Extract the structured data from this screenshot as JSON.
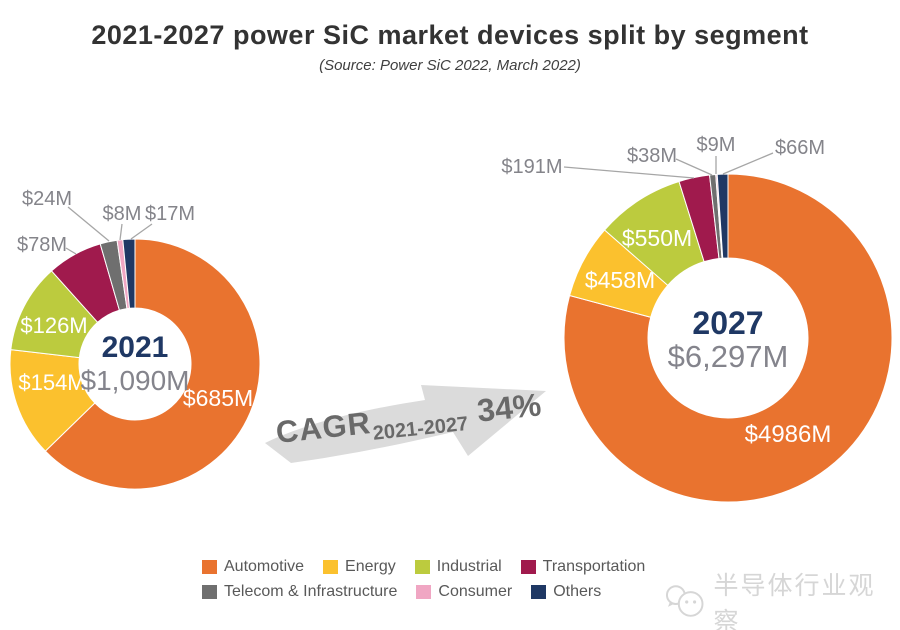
{
  "title": "2021-2027 power SiC market devices split by segment",
  "subtitle": "(Source: Power SiC 2022, March 2022)",
  "cagr": {
    "prefix": "CAGR",
    "subscript": "2021-2027",
    "value": "34%"
  },
  "watermark": {
    "text": "半导体行业观察"
  },
  "colors": {
    "automotive": "#E9732F",
    "energy": "#FBC12E",
    "industrial": "#BCCB3E",
    "transportation": "#A01A4D",
    "telecom_infrastructure": "#6F6F6F",
    "consumer": "#F0A6C3",
    "others": "#1F3864",
    "year_text": "#1F3864",
    "total_text": "#84848C",
    "inside_label": "#FFFFFF",
    "outside_label": "#84848A",
    "leader_line": "#A6A6A6",
    "arrow": "#DBDBDB",
    "cagr_text": "#696969",
    "title_text": "#333333",
    "legend_text": "#595959",
    "watermark_text": "#D6D6D6"
  },
  "legend": {
    "items": [
      {
        "label": "Automotive",
        "color_key": "automotive"
      },
      {
        "label": "Energy",
        "color_key": "energy"
      },
      {
        "label": "Industrial",
        "color_key": "industrial"
      },
      {
        "label": "Transportation",
        "color_key": "transportation"
      },
      {
        "label": "Telecom & Infrastructure",
        "color_key": "telecom_infrastructure"
      },
      {
        "label": "Consumer",
        "color_key": "consumer"
      },
      {
        "label": "Others",
        "color_key": "others"
      }
    ]
  },
  "chart_data": [
    {
      "type": "pie",
      "subtype": "donut",
      "year": "2021",
      "total_label": "$1,090M",
      "total_value": 1090,
      "start_angle_deg": 0,
      "direction": "clockwise",
      "segments": [
        {
          "name": "Automotive",
          "color_key": "automotive",
          "value": 685,
          "label": "$685M",
          "label_pos": "inside"
        },
        {
          "name": "Energy",
          "color_key": "energy",
          "value": 154,
          "label": "$154M",
          "label_pos": "inside"
        },
        {
          "name": "Industrial",
          "color_key": "industrial",
          "value": 126,
          "label": "$126M",
          "label_pos": "inside"
        },
        {
          "name": "Transportation",
          "color_key": "transportation",
          "value": 78,
          "label": "$78M",
          "label_pos": "outside"
        },
        {
          "name": "Telecom & Infrastructure",
          "color_key": "telecom_infrastructure",
          "value": 24,
          "label": "$24M",
          "label_pos": "outside"
        },
        {
          "name": "Consumer",
          "color_key": "consumer",
          "value": 8,
          "label": "$8M",
          "label_pos": "outside"
        },
        {
          "name": "Others",
          "color_key": "others",
          "value": 17,
          "label": "$17M",
          "label_pos": "outside"
        }
      ]
    },
    {
      "type": "pie",
      "subtype": "donut",
      "year": "2027",
      "total_label": "$6,297M",
      "total_value": 6297,
      "start_angle_deg": 0,
      "direction": "clockwise",
      "segments": [
        {
          "name": "Automotive",
          "color_key": "automotive",
          "value": 4986,
          "label": "$4986M",
          "label_pos": "inside"
        },
        {
          "name": "Energy",
          "color_key": "energy",
          "value": 458,
          "label": "$458M",
          "label_pos": "inside"
        },
        {
          "name": "Industrial",
          "color_key": "industrial",
          "value": 550,
          "label": "$550M",
          "label_pos": "inside"
        },
        {
          "name": "Transportation",
          "color_key": "transportation",
          "value": 191,
          "label": "$191M",
          "label_pos": "outside"
        },
        {
          "name": "Telecom & Infrastructure",
          "color_key": "telecom_infrastructure",
          "value": 38,
          "label": "$38M",
          "label_pos": "outside"
        },
        {
          "name": "Consumer",
          "color_key": "consumer",
          "value": 9,
          "label": "$9M",
          "label_pos": "outside"
        },
        {
          "name": "Others",
          "color_key": "others",
          "value": 66,
          "label": "$66M",
          "label_pos": "outside"
        }
      ]
    }
  ]
}
